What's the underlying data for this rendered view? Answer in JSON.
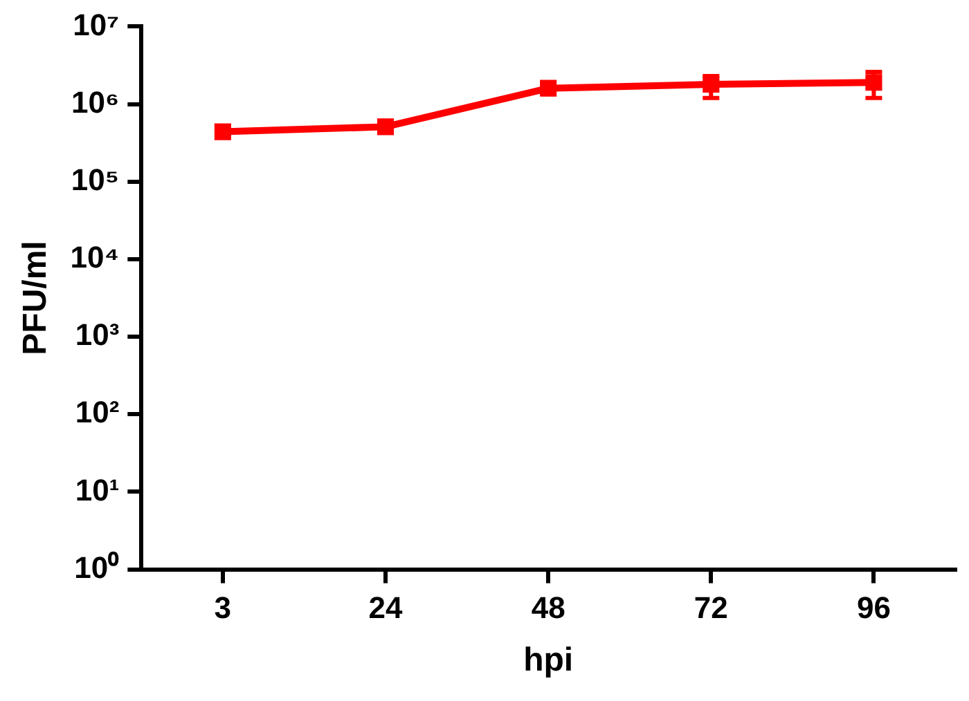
{
  "chart_data": {
    "type": "line",
    "xlabel": "hpi",
    "ylabel": "PFU/ml",
    "categories": [
      "3",
      "24",
      "48",
      "72",
      "96"
    ],
    "series": [
      {
        "color": "#ff0000",
        "values": [
          440000,
          510000,
          1600000,
          1800000,
          1900000
        ],
        "errors": [
          null,
          null,
          null,
          [
            1200000,
            2300000
          ],
          [
            1200000,
            2600000
          ]
        ]
      }
    ],
    "log": "y",
    "ylim": [
      1,
      10000000
    ],
    "yticks": [
      {
        "value": 1,
        "label": "10⁰"
      },
      {
        "value": 10,
        "label": "10¹"
      },
      {
        "value": 100,
        "label": "10²"
      },
      {
        "value": 1000,
        "label": "10³"
      },
      {
        "value": 10000,
        "label": "10⁴"
      },
      {
        "value": 100000,
        "label": "10⁵"
      },
      {
        "value": 1000000,
        "label": "10⁶"
      },
      {
        "value": 10000000,
        "label": "10⁷"
      }
    ],
    "grid": false,
    "legend": false,
    "marker": "square",
    "line_style": "solid"
  }
}
